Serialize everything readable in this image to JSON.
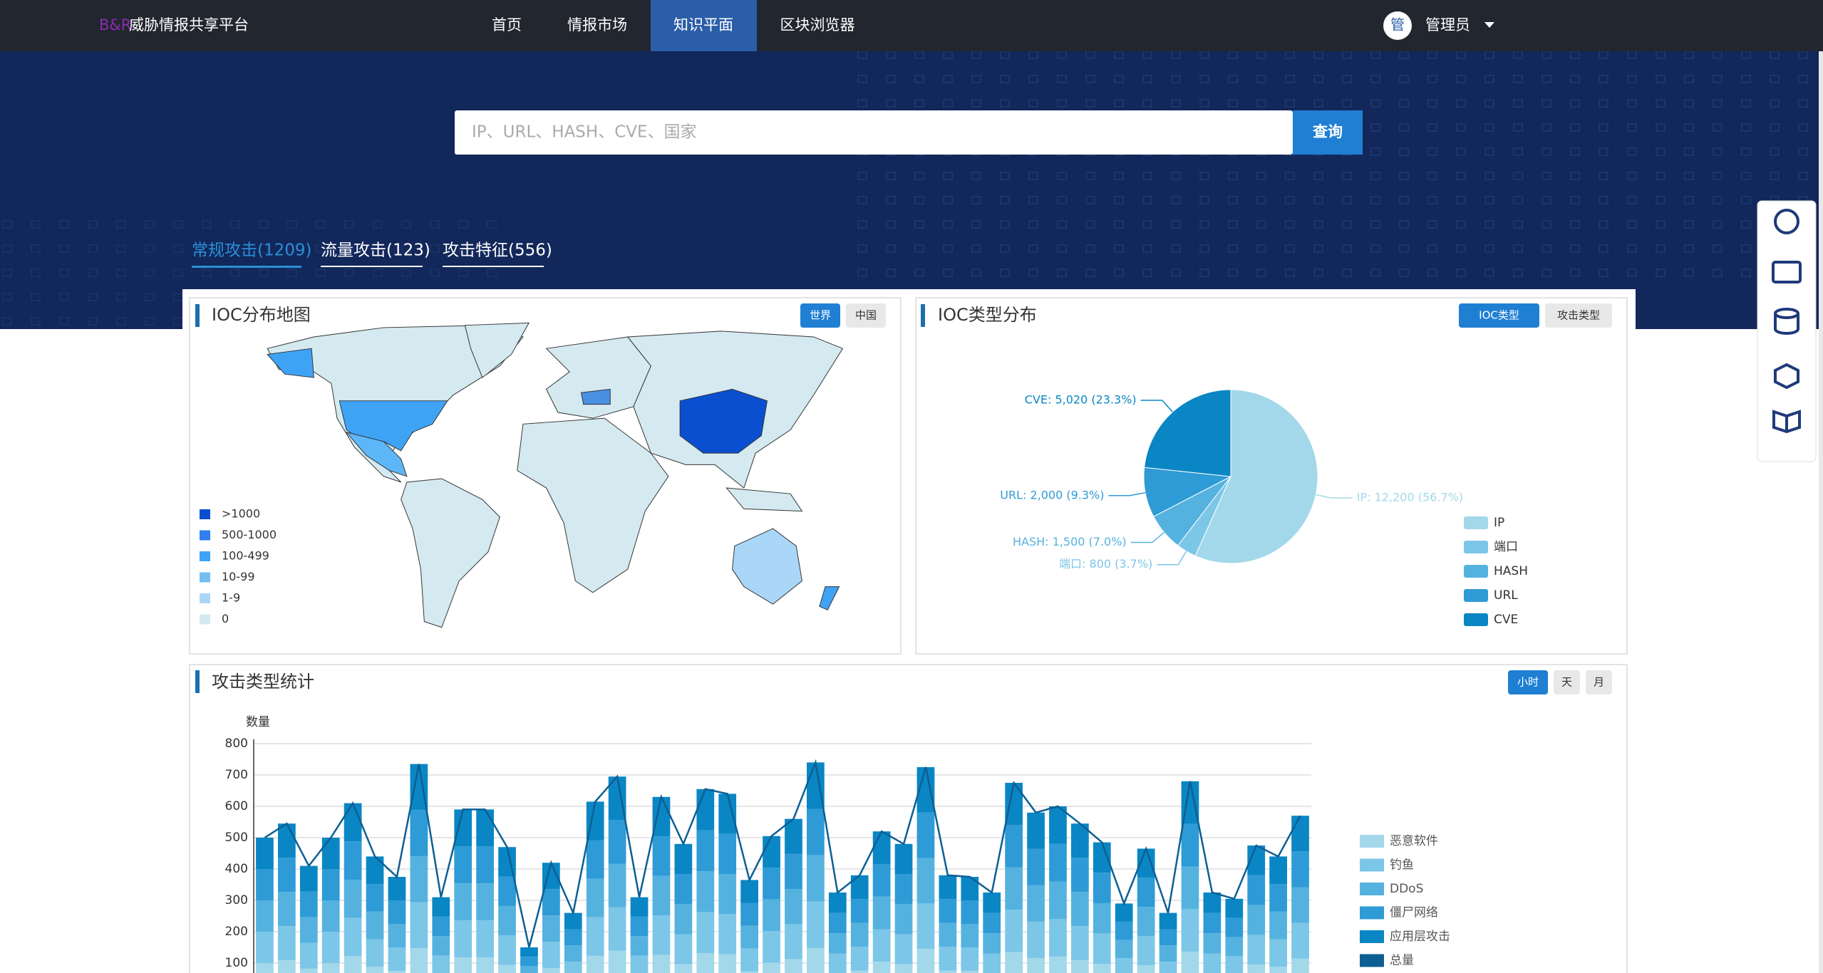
{
  "header": {
    "logo_prefix": "B&R",
    "logo": "威胁情报共享平台",
    "nav": [
      "首页",
      "情报市场",
      "知识平面",
      "区块浏览器"
    ],
    "avatar": "管",
    "user": "管理员"
  },
  "search": {
    "placeholder": "IP、URL、HASH、CVE、国家",
    "button": "查询"
  },
  "tabs": [
    "常规攻击(1209)",
    "流量攻击(123)",
    "攻击特征(556)"
  ],
  "map_card": {
    "title": "IOC分布地图",
    "buttons": [
      "世界",
      "中国"
    ],
    "legend": [
      {
        "label": ">1000",
        "color": "#0a4fd0"
      },
      {
        "label": "500-1000",
        "color": "#2f7ff0"
      },
      {
        "label": "100-499",
        "color": "#3fa3f5"
      },
      {
        "label": "10-99",
        "color": "#74bdf3"
      },
      {
        "label": "1-9",
        "color": "#aad6f7"
      },
      {
        "label": "0",
        "color": "#d4e9f0"
      }
    ]
  },
  "chart_data": [
    {
      "type": "pie",
      "title": "IOC类型分布",
      "buttons": [
        "IOC类型",
        "攻击类型"
      ],
      "categories": [
        "IP",
        "端口",
        "HASH",
        "URL",
        "CVE"
      ],
      "values": [
        12200,
        800,
        1500,
        2000,
        5020
      ],
      "value_labels": [
        "IP: 12,200 (56.7%)",
        "端口: 800 (3.7%)",
        "HASH: 1,500 (7.0%)",
        "URL: 2,000 (9.3%)",
        "CVE: 5,020 (23.3%)"
      ],
      "colors": [
        "#a3d8ea",
        "#7cc6e8",
        "#55b2df",
        "#2e9bd6",
        "#0a86c4"
      ]
    },
    {
      "type": "bar",
      "stacked": true,
      "title": "攻击类型统计",
      "buttons": [
        "小时",
        "天",
        "月"
      ],
      "y_label": "数量",
      "ylim": [
        0,
        800
      ],
      "yticks": [
        100,
        200,
        300,
        400,
        500,
        600,
        700,
        800
      ],
      "grid": true,
      "series": [
        {
          "name": "恶意软件",
          "color": "#a3d8ea",
          "values": [
            100,
            109,
            82,
            100,
            122,
            88,
            75,
            147,
            62,
            118,
            118,
            94,
            30,
            84,
            52,
            123,
            139,
            62,
            126,
            96,
            131,
            128,
            73,
            101,
            112,
            148,
            65,
            76,
            104,
            96,
            145,
            76,
            75,
            65,
            135,
            116,
            120,
            109,
            97,
            58,
            93,
            52,
            136,
            65,
            61,
            95,
            88,
            114
          ]
        },
        {
          "name": "钓鱼",
          "color": "#7cc6e8",
          "values": [
            100,
            109,
            82,
            100,
            122,
            88,
            75,
            147,
            62,
            118,
            118,
            94,
            30,
            84,
            52,
            123,
            139,
            62,
            126,
            96,
            131,
            128,
            73,
            101,
            112,
            148,
            65,
            76,
            104,
            96,
            145,
            76,
            75,
            65,
            135,
            116,
            120,
            109,
            97,
            58,
            93,
            52,
            136,
            65,
            61,
            95,
            88,
            114
          ]
        },
        {
          "name": "DDoS",
          "color": "#55b2df",
          "values": [
            100,
            109,
            82,
            100,
            122,
            88,
            75,
            147,
            62,
            118,
            118,
            94,
            30,
            84,
            52,
            123,
            139,
            62,
            126,
            96,
            131,
            128,
            73,
            101,
            112,
            148,
            65,
            76,
            104,
            96,
            145,
            76,
            75,
            65,
            135,
            116,
            120,
            109,
            97,
            58,
            93,
            52,
            136,
            65,
            61,
            95,
            88,
            114
          ]
        },
        {
          "name": "僵尸网络",
          "color": "#2e9bd6",
          "values": [
            100,
            109,
            82,
            100,
            122,
            88,
            75,
            147,
            62,
            118,
            118,
            94,
            30,
            84,
            52,
            123,
            139,
            62,
            126,
            96,
            131,
            128,
            73,
            101,
            112,
            148,
            65,
            76,
            104,
            96,
            145,
            76,
            75,
            65,
            135,
            116,
            120,
            109,
            97,
            58,
            93,
            52,
            136,
            65,
            61,
            95,
            88,
            114
          ]
        },
        {
          "name": "应用层攻击",
          "color": "#0a86c4",
          "values": [
            100,
            109,
            82,
            100,
            122,
            88,
            75,
            147,
            62,
            118,
            118,
            94,
            30,
            84,
            52,
            123,
            139,
            62,
            126,
            96,
            131,
            128,
            73,
            101,
            112,
            148,
            65,
            76,
            104,
            96,
            145,
            76,
            75,
            65,
            135,
            116,
            120,
            109,
            97,
            58,
            93,
            52,
            136,
            65,
            61,
            95,
            88,
            114
          ]
        },
        {
          "name": "总量",
          "color": "#0d5f93",
          "type": "line",
          "values": [
            500,
            545,
            410,
            500,
            610,
            440,
            375,
            735,
            310,
            590,
            590,
            470,
            150,
            420,
            260,
            615,
            695,
            310,
            630,
            480,
            655,
            640,
            365,
            505,
            560,
            740,
            325,
            380,
            520,
            480,
            725,
            380,
            375,
            325,
            675,
            580,
            600,
            545,
            485,
            290,
            465,
            260,
            680,
            325,
            305,
            475,
            440,
            570
          ]
        }
      ]
    }
  ]
}
